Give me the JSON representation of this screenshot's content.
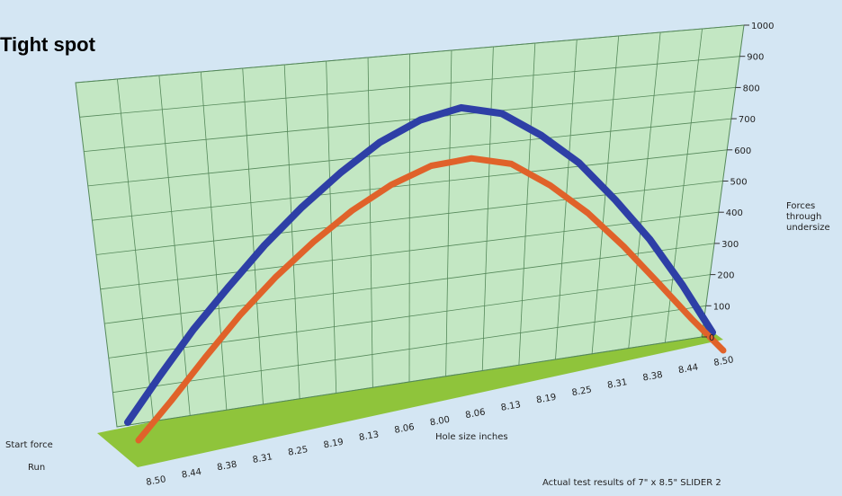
{
  "title": "Tight spot",
  "footnote": "Actual test results of 7\" x 8.5\" SLIDER 2",
  "colors": {
    "background": "#d4e6f3",
    "wall": "#c3e7c3",
    "grid": "#55885a",
    "floor": "#8fc43b",
    "start_force": "#2e3fa6",
    "run": "#e0622a"
  },
  "chart_data": {
    "type": "line",
    "title": "Tight spot",
    "xlabel": "Hole size inches",
    "ylabel_lines": [
      "Forces",
      "through",
      "undersize"
    ],
    "ylim": [
      0,
      1000
    ],
    "yticks": [
      "0",
      "100",
      "200",
      "300",
      "400",
      "500",
      "600",
      "700",
      "800",
      "900",
      "1000"
    ],
    "categories": [
      "8.50",
      "8.44",
      "8.38",
      "8.31",
      "8.25",
      "8.19",
      "8.13",
      "8.06",
      "8.00",
      "8.06",
      "8.13",
      "8.19",
      "8.25",
      "8.31",
      "8.38",
      "8.44",
      "8.50"
    ],
    "series": [
      {
        "name": "Start force",
        "values": [
          0,
          120,
          240,
          350,
          460,
          560,
          650,
          730,
          785,
          810,
          780,
          700,
          600,
          470,
          330,
          170,
          0
        ]
      },
      {
        "name": "Run",
        "values": [
          0,
          100,
          210,
          320,
          420,
          510,
          590,
          655,
          700,
          710,
          680,
          600,
          500,
          380,
          250,
          120,
          0
        ]
      }
    ],
    "grid": true,
    "projection": "3d"
  }
}
